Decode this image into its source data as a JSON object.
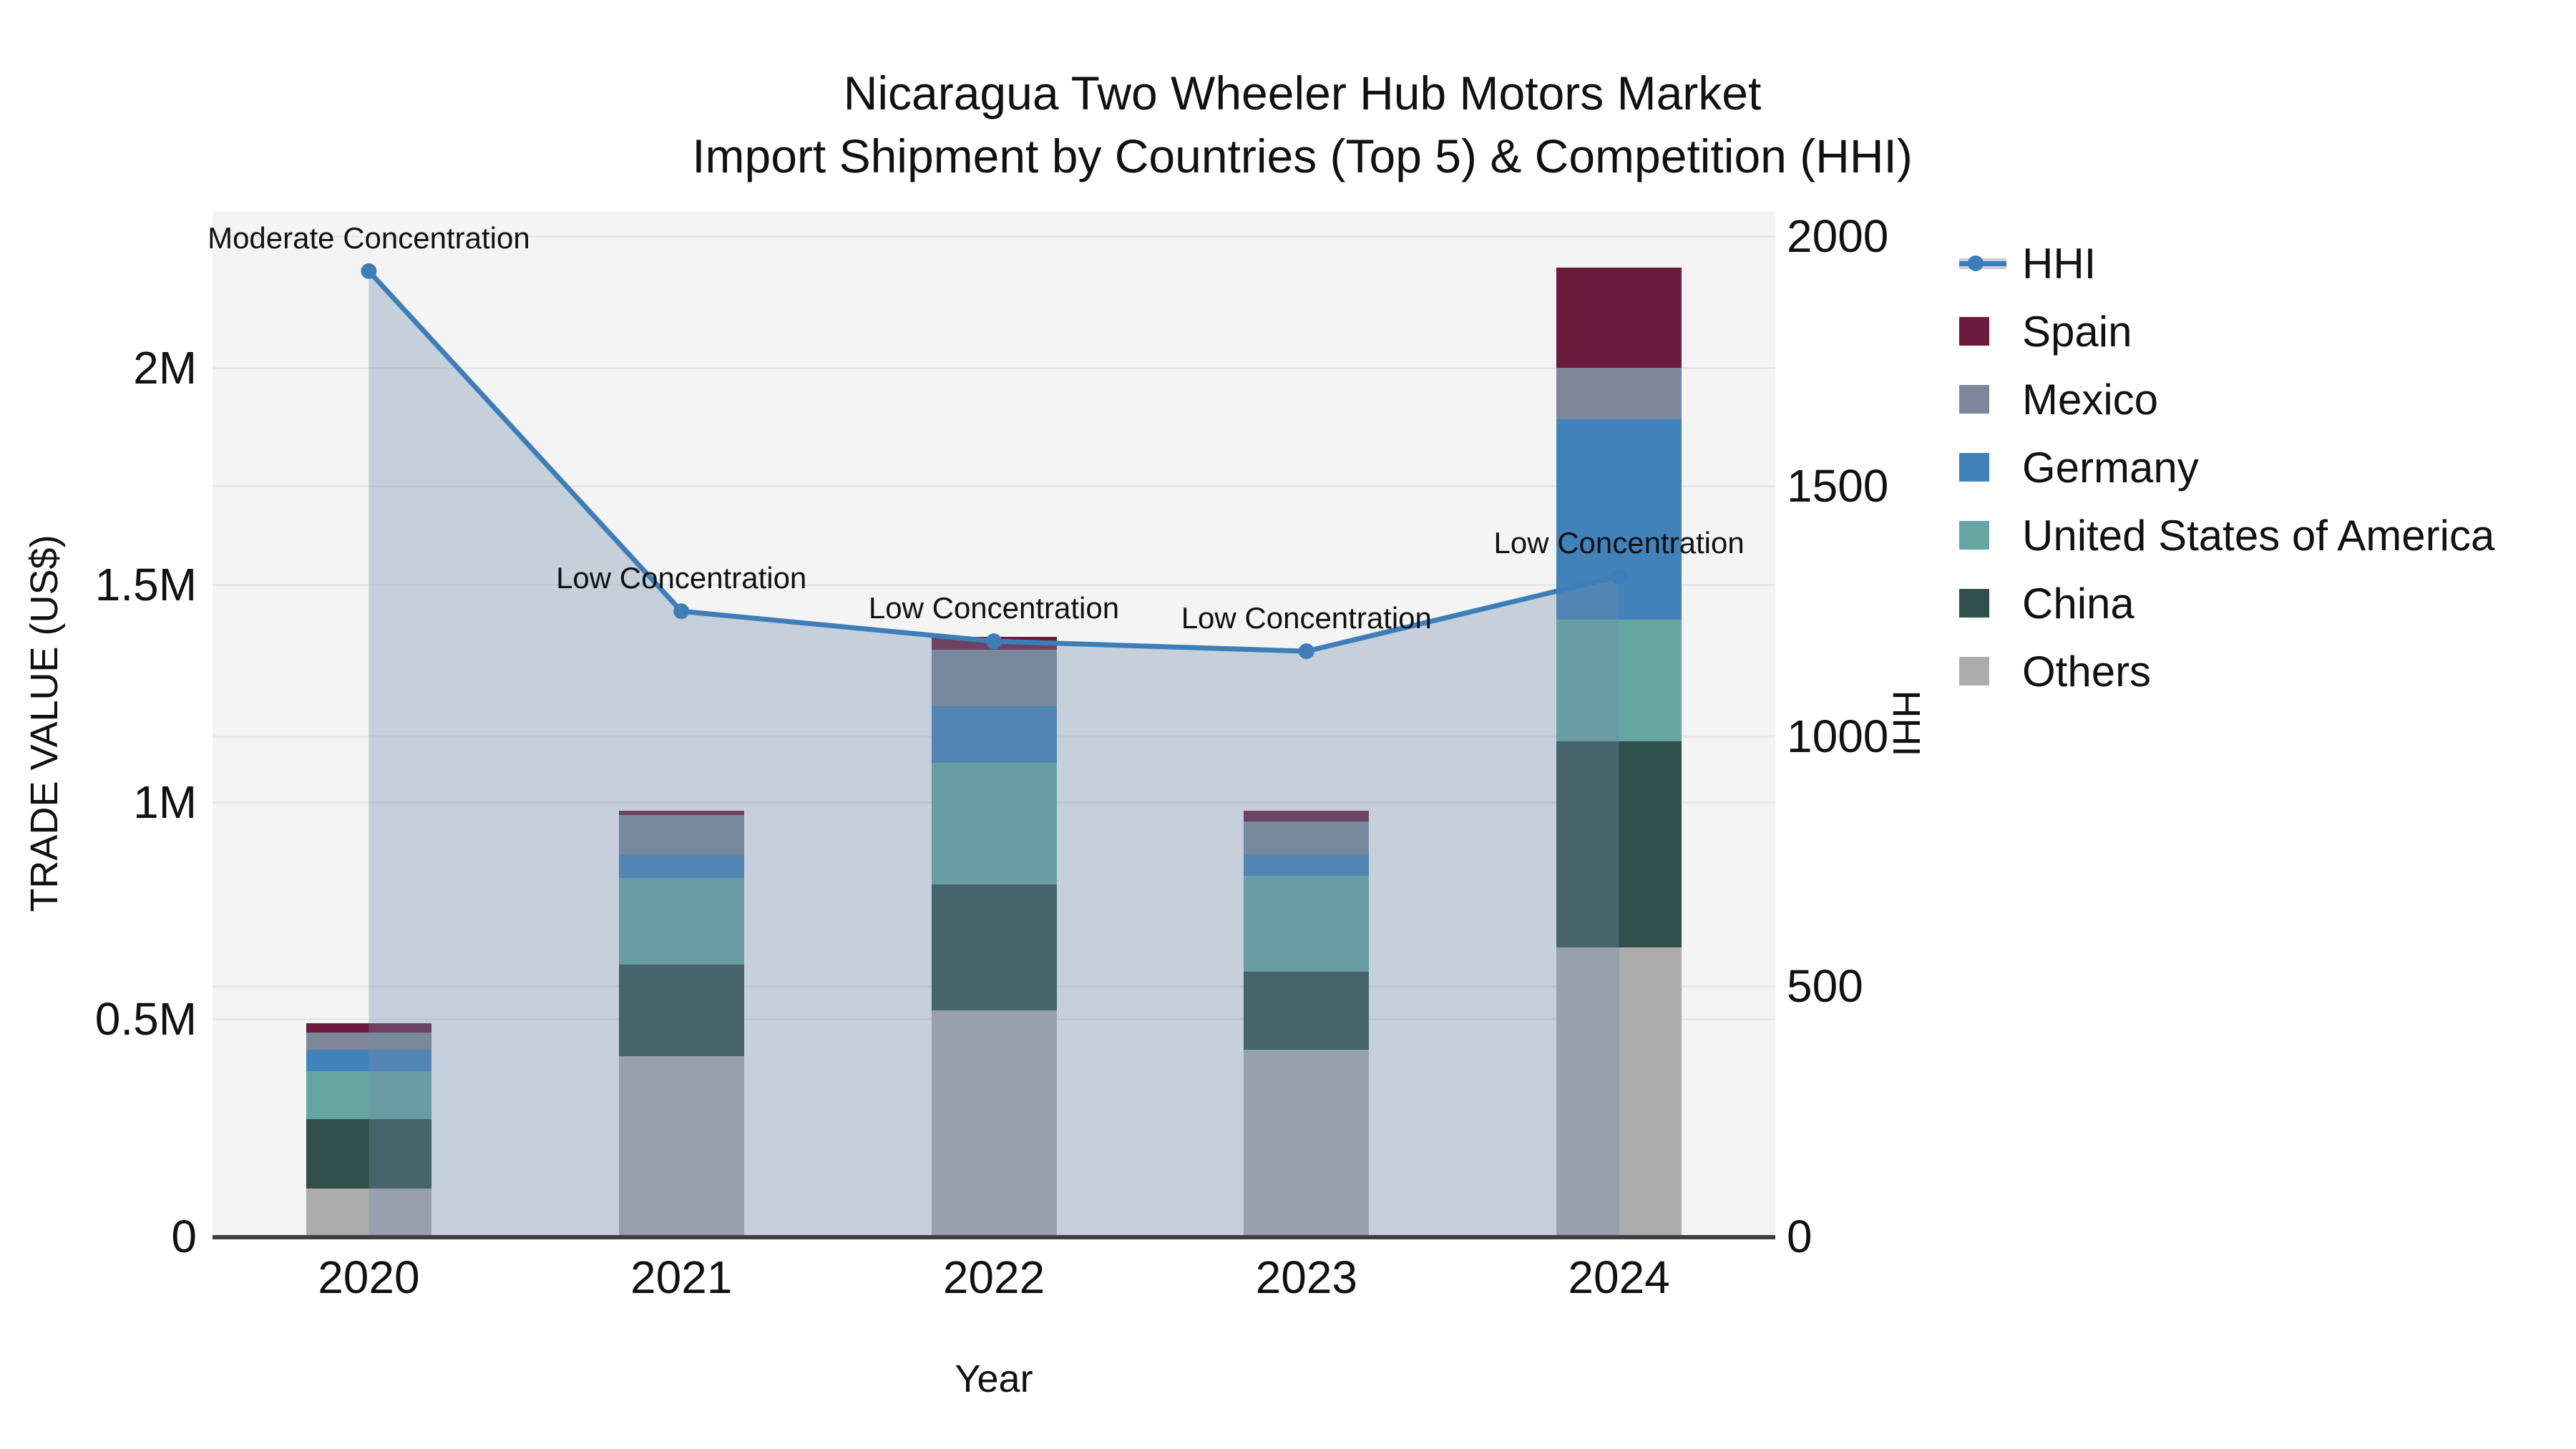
{
  "title": "Nicaragua Two Wheeler Hub Motors Market",
  "subtitle": "Import Shipment by Countries (Top 5) & Competition (HHI)",
  "colors": {
    "plot_bg": "#f4f4f4",
    "grid": "#e7e7e7",
    "axis_line": "#3f3f3f",
    "text": "#111111"
  },
  "chart_data": {
    "type": "bar+line",
    "title": "Nicaragua Two Wheeler Hub Motors Market",
    "subtitle": "Import Shipment by Countries (Top 5) & Competition (HHI)",
    "x": [
      "2020",
      "2021",
      "2022",
      "2023",
      "2024"
    ],
    "xlabel": "Year",
    "ylabel_left": "TRADE VALUE (US$)",
    "ylabel_right": "HHI",
    "grid": true,
    "legend_position": "right",
    "left_axis": {
      "ticks": [
        0,
        500000,
        1000000,
        1500000,
        2000000
      ],
      "tick_labels": [
        "0",
        "0.5M",
        "1M",
        "1.5M",
        "2M"
      ],
      "max": 2360000
    },
    "right_axis": {
      "ticks": [
        0,
        500,
        1000,
        1500,
        2000
      ],
      "tick_labels": [
        "0",
        "500",
        "1000",
        "1500",
        "2000"
      ],
      "max": 2050
    },
    "series": [
      {
        "name": "Spain",
        "color": "#6b1c3e",
        "values": [
          20000,
          10000,
          30000,
          25000,
          230000
        ]
      },
      {
        "name": "Mexico",
        "color": "#7d8799",
        "values": [
          40000,
          90000,
          130000,
          75000,
          120000
        ]
      },
      {
        "name": "Germany",
        "color": "#4282ba",
        "values": [
          50000,
          55000,
          130000,
          50000,
          460000
        ]
      },
      {
        "name": "United States of America",
        "color": "#66a6a2",
        "values": [
          110000,
          200000,
          280000,
          220000,
          280000
        ]
      },
      {
        "name": "China",
        "color": "#2f4f4b",
        "values": [
          160000,
          210000,
          290000,
          180000,
          475000
        ]
      },
      {
        "name": "Others",
        "color": "#acacac",
        "values": [
          110000,
          415000,
          520000,
          430000,
          665000
        ]
      }
    ],
    "hhi": {
      "name": "HHI",
      "color": "#3d7eb8",
      "area_fill": "rgba(112,140,170,0.35)",
      "values": [
        1930,
        1250,
        1190,
        1170,
        1320
      ]
    },
    "annotations": [
      "Moderate Concentration",
      "Low Concentration",
      "Low Concentration",
      "Low Concentration",
      "Low Concentration"
    ]
  }
}
